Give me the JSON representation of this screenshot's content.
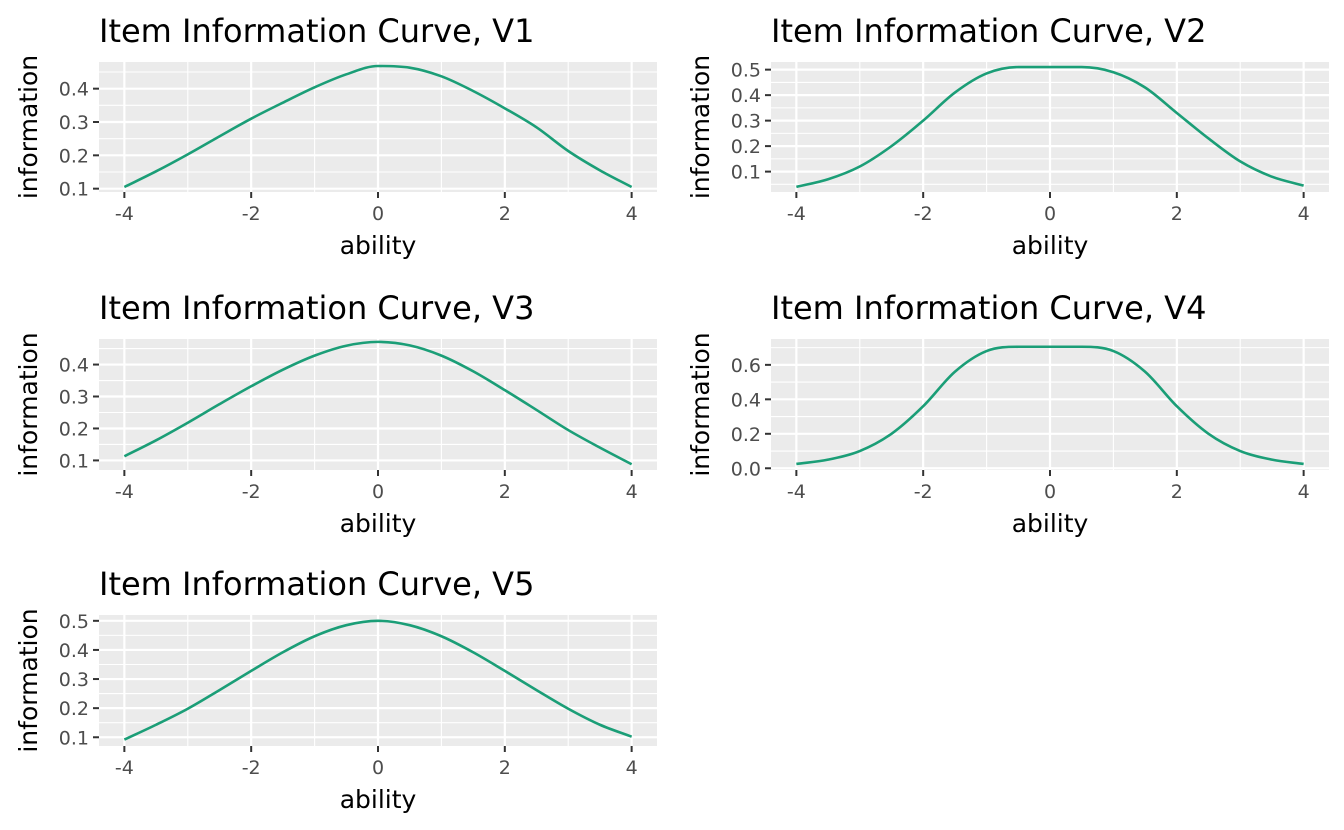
{
  "colors": {
    "line": "#1b9e77",
    "panel_background": "#ebebeb",
    "grid": "#ffffff",
    "tick_mark": "#333333",
    "tick_text": "#4d4d4d"
  },
  "chart_data": [
    {
      "type": "line",
      "title": "Item Information Curve, V1",
      "xlabel": "ability",
      "ylabel": "information",
      "xlim": [
        -4,
        4
      ],
      "ylim": [
        0.09,
        0.48
      ],
      "xticks": [
        -4,
        -2,
        0,
        2,
        4
      ],
      "xtick_labels": [
        "-4",
        "-2",
        "0",
        "2",
        "4"
      ],
      "yticks": [
        0.1,
        0.2,
        0.3,
        0.4
      ],
      "ytick_labels": [
        "0.1",
        "0.2",
        "0.3",
        "0.4"
      ],
      "grid": true,
      "x": [
        -4,
        -3.5,
        -3,
        -2.5,
        -2,
        -1.5,
        -1,
        -0.5,
        0,
        0.5,
        1,
        1.5,
        2,
        2.5,
        3,
        3.5,
        4
      ],
      "y": [
        0.105,
        0.152,
        0.203,
        0.257,
        0.31,
        0.358,
        0.404,
        0.443,
        0.468,
        0.463,
        0.437,
        0.393,
        0.341,
        0.284,
        0.213,
        0.155,
        0.105
      ]
    },
    {
      "type": "line",
      "title": "Item Information Curve, V2",
      "xlabel": "ability",
      "ylabel": "information",
      "xlim": [
        -4,
        4
      ],
      "ylim": [
        0.02,
        0.53
      ],
      "xticks": [
        -4,
        -2,
        0,
        2,
        4
      ],
      "xtick_labels": [
        "-4",
        "-2",
        "0",
        "2",
        "4"
      ],
      "yticks": [
        0.1,
        0.2,
        0.3,
        0.4,
        0.5
      ],
      "ytick_labels": [
        "0.1",
        "0.2",
        "0.3",
        "0.4",
        "0.5"
      ],
      "grid": true,
      "x": [
        -4,
        -3.5,
        -3,
        -2.5,
        -2,
        -1.5,
        -1,
        -0.5,
        0,
        0.5,
        1,
        1.5,
        2,
        2.5,
        3,
        3.5,
        4
      ],
      "y": [
        0.04,
        0.07,
        0.12,
        0.2,
        0.3,
        0.41,
        0.485,
        0.51,
        0.51,
        0.51,
        0.49,
        0.43,
        0.33,
        0.23,
        0.14,
        0.08,
        0.045
      ]
    },
    {
      "type": "line",
      "title": "Item Information Curve, V3",
      "xlabel": "ability",
      "ylabel": "information",
      "xlim": [
        -4,
        4
      ],
      "ylim": [
        0.07,
        0.48
      ],
      "xticks": [
        -4,
        -2,
        0,
        2,
        4
      ],
      "xtick_labels": [
        "-4",
        "-2",
        "0",
        "2",
        "4"
      ],
      "yticks": [
        0.1,
        0.2,
        0.3,
        0.4
      ],
      "ytick_labels": [
        "0.1",
        "0.2",
        "0.3",
        "0.4"
      ],
      "grid": true,
      "x": [
        -4,
        -3.5,
        -3,
        -2.5,
        -2,
        -1.5,
        -1,
        -0.5,
        0,
        0.5,
        1,
        1.5,
        2,
        2.5,
        3,
        3.5,
        4
      ],
      "y": [
        0.113,
        0.163,
        0.218,
        0.276,
        0.332,
        0.384,
        0.428,
        0.459,
        0.471,
        0.46,
        0.428,
        0.379,
        0.32,
        0.258,
        0.195,
        0.14,
        0.088
      ]
    },
    {
      "type": "line",
      "title": "Item Information Curve, V4",
      "xlabel": "ability",
      "ylabel": "information",
      "xlim": [
        -4,
        4
      ],
      "ylim": [
        -0.01,
        0.75
      ],
      "xticks": [
        -4,
        -2,
        0,
        2,
        4
      ],
      "xtick_labels": [
        "-4",
        "-2",
        "0",
        "2",
        "4"
      ],
      "yticks": [
        0,
        0.2,
        0.4,
        0.6
      ],
      "ytick_labels": [
        "0.0",
        "0.2",
        "0.4",
        "0.6"
      ],
      "grid": true,
      "x": [
        -4,
        -3.5,
        -3,
        -2.5,
        -2,
        -1.5,
        -1,
        -0.5,
        0,
        0.5,
        1,
        1.5,
        2,
        2.5,
        3,
        3.5,
        4
      ],
      "y": [
        0.025,
        0.05,
        0.1,
        0.2,
        0.36,
        0.56,
        0.68,
        0.705,
        0.705,
        0.705,
        0.68,
        0.56,
        0.36,
        0.2,
        0.1,
        0.05,
        0.025
      ]
    },
    {
      "type": "line",
      "title": "Item Information Curve, V5",
      "xlabel": "ability",
      "ylabel": "information",
      "xlim": [
        -4,
        4
      ],
      "ylim": [
        0.07,
        0.52
      ],
      "xticks": [
        -4,
        -2,
        0,
        2,
        4
      ],
      "xtick_labels": [
        "-4",
        "-2",
        "0",
        "2",
        "4"
      ],
      "yticks": [
        0.1,
        0.2,
        0.3,
        0.4,
        0.5
      ],
      "ytick_labels": [
        "0.1",
        "0.2",
        "0.3",
        "0.4",
        "0.5"
      ],
      "grid": true,
      "x": [
        -4,
        -3.5,
        -3,
        -2.5,
        -2,
        -1.5,
        -1,
        -0.5,
        0,
        0.5,
        1,
        1.5,
        2,
        2.5,
        3,
        3.5,
        4
      ],
      "y": [
        0.092,
        0.143,
        0.198,
        0.262,
        0.328,
        0.392,
        0.447,
        0.485,
        0.5,
        0.485,
        0.447,
        0.392,
        0.328,
        0.262,
        0.198,
        0.143,
        0.102
      ]
    }
  ]
}
